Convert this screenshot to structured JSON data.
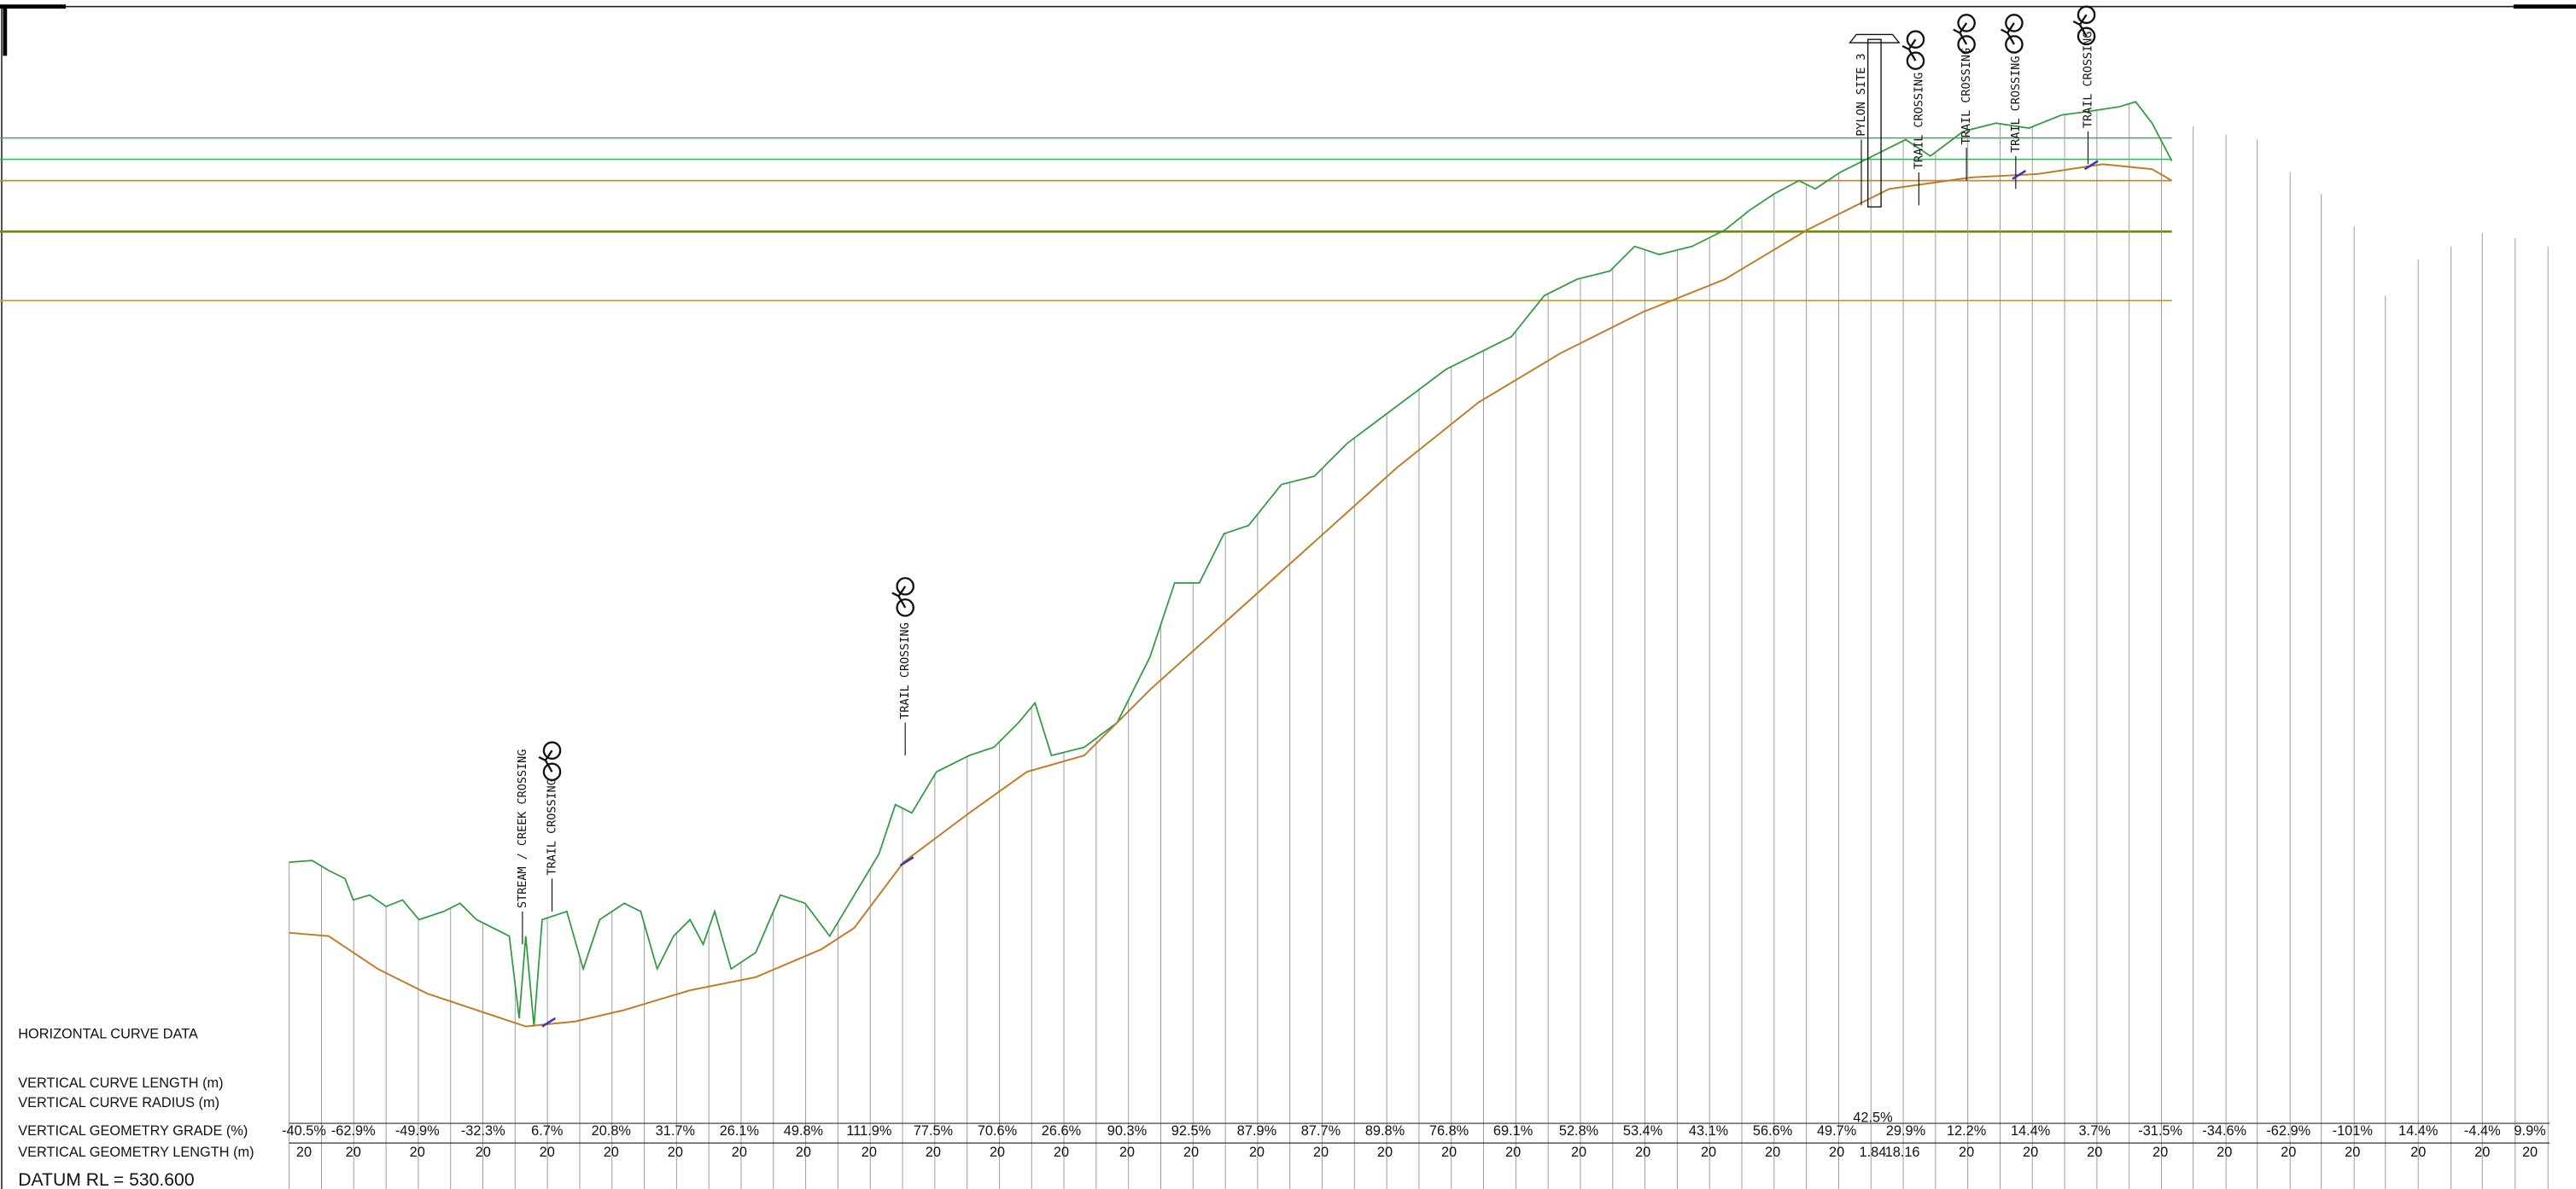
{
  "rows": {
    "horizontal_curve_data": "HORIZONTAL CURVE DATA",
    "vertical_curve_length": "VERTICAL CURVE LENGTH (m)",
    "vertical_curve_radius": "VERTICAL CURVE RADIUS (m)",
    "vertical_geometry_grade": "VERTICAL GEOMETRY GRADE (%)",
    "vertical_geometry_length": "VERTICAL GEOMETRY LENGTH (m)",
    "datum": "DATUM RL = 530.600"
  },
  "grades": [
    "-40.5%",
    "-62.9%",
    "-49.9%",
    "-32.3%",
    "6.7%",
    "20.8%",
    "31.7%",
    "26.1%",
    "49.8%",
    "111.9%",
    "77.5%",
    "70.6%",
    "26.6%",
    "90.3%",
    "92.5%",
    "87.9%",
    "87.7%",
    "89.8%",
    "76.8%",
    "69.1%",
    "52.8%",
    "53.4%",
    "43.1%",
    "56.6%",
    "49.7%",
    "42.5%",
    "29.9%",
    "12.2%",
    "14.4%",
    "3.7%",
    "-31.5%",
    "-34.6%",
    "-62.9%",
    "-101%",
    "14.4%",
    "-4.4%",
    "9.9%"
  ],
  "lengths": [
    "20",
    "20",
    "20",
    "20",
    "20",
    "20",
    "20",
    "20",
    "20",
    "20",
    "20",
    "20",
    "20",
    "20",
    "20",
    "20",
    "20",
    "20",
    "20",
    "20",
    "20",
    "20",
    "20",
    "20",
    "20",
    "1.84",
    "18.16",
    "20",
    "20",
    "20",
    "20",
    "20",
    "20",
    "20",
    "20",
    "20",
    "20"
  ],
  "annotations": [
    "STREAM / CREEK CROSSING",
    "TRAIL CROSSING",
    "TRAIL CROSSING",
    "PYLON SITE 3",
    "TRAIL CROSSING",
    "TRAIL CROSSING",
    "TRAIL CROSSING",
    "TRAIL CROSSING"
  ]
}
